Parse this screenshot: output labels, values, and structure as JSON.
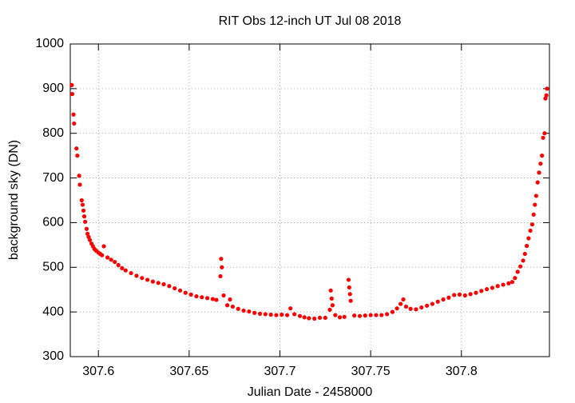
{
  "chart_data": {
    "type": "scatter",
    "title": "RIT Obs 12-inch UT Jul 08 2018",
    "x_label": "Julian Date - 2458000",
    "y_label": "background sky (DN)",
    "xlim": [
      307.5845,
      307.8485
    ],
    "ylim": [
      300,
      1000
    ],
    "xticks": [
      307.6,
      307.65,
      307.7,
      307.75,
      307.8
    ],
    "yticks": [
      300,
      400,
      500,
      600,
      700,
      800,
      900,
      1000
    ],
    "grid": true,
    "series": [
      {
        "name": "background sky",
        "color": "#ff0000",
        "x": [
          307.5853,
          307.5856,
          307.5863,
          307.5866,
          307.5879,
          307.5884,
          307.5894,
          307.5898,
          307.5908,
          307.5913,
          307.5918,
          307.5922,
          307.5927,
          307.5935,
          307.594,
          307.5946,
          307.5953,
          307.5962,
          307.597,
          307.5978,
          307.5988,
          307.6,
          307.601,
          307.602,
          307.603,
          307.605,
          307.607,
          307.609,
          307.611,
          307.613,
          307.615,
          307.618,
          307.621,
          307.624,
          307.627,
          307.63,
          307.633,
          307.636,
          307.639,
          307.642,
          307.645,
          307.648,
          307.651,
          307.654,
          307.657,
          307.66,
          307.663,
          307.665,
          307.6672,
          307.6676,
          307.668,
          307.669,
          307.671,
          307.6725,
          307.674,
          307.677,
          307.68,
          307.683,
          307.686,
          307.689,
          307.692,
          307.695,
          307.698,
          307.701,
          307.704,
          307.7058,
          307.708,
          307.711,
          307.7135,
          307.716,
          307.719,
          307.722,
          307.725,
          307.7275,
          307.728,
          307.7285,
          307.729,
          307.7305,
          307.733,
          307.7355,
          307.7378,
          307.7382,
          307.7386,
          307.739,
          307.741,
          307.744,
          307.747,
          307.75,
          307.753,
          307.756,
          307.759,
          307.762,
          307.7645,
          307.7665,
          307.768,
          307.7695,
          307.772,
          307.775,
          307.778,
          307.781,
          307.784,
          307.787,
          307.79,
          307.793,
          307.796,
          307.799,
          307.802,
          307.805,
          307.808,
          307.811,
          307.814,
          307.817,
          307.82,
          307.823,
          307.826,
          307.828,
          307.8295,
          307.831,
          307.8325,
          307.834,
          307.835,
          307.836,
          307.837,
          307.838,
          307.839,
          307.8398,
          307.8405,
          307.8412,
          307.842,
          307.8428,
          307.8436,
          307.8444,
          307.845,
          307.8458,
          307.8463,
          307.8468,
          307.8472
        ],
        "y": [
          908,
          888,
          842,
          822,
          766,
          750,
          705,
          685,
          650,
          640,
          627,
          614,
          602,
          586,
          575,
          568,
          561,
          553,
          547,
          541,
          537,
          533,
          530,
          527,
          547,
          522,
          517,
          512,
          505,
          498,
          493,
          487,
          481,
          476,
          472,
          468,
          465,
          462,
          458,
          453,
          448,
          443,
          439,
          435,
          433,
          431,
          429,
          427,
          480,
          519,
          500,
          437,
          415,
          428,
          412,
          407,
          403,
          401,
          398,
          396,
          395,
          394,
          393,
          394,
          393,
          408,
          395,
          391,
          388,
          386,
          385,
          387,
          387,
          405,
          448,
          430,
          415,
          393,
          388,
          389,
          472,
          455,
          440,
          425,
          392,
          391,
          392,
          393,
          393,
          393,
          395,
          400,
          408,
          418,
          428,
          412,
          407,
          406,
          410,
          414,
          418,
          423,
          428,
          432,
          438,
          439,
          437,
          440,
          443,
          447,
          451,
          454,
          458,
          461,
          464,
          467,
          476,
          490,
          502,
          515,
          530,
          548,
          565,
          582,
          596,
          618,
          640,
          660,
          690,
          712,
          732,
          750,
          790,
          800,
          878,
          885,
          900
        ]
      }
    ]
  }
}
